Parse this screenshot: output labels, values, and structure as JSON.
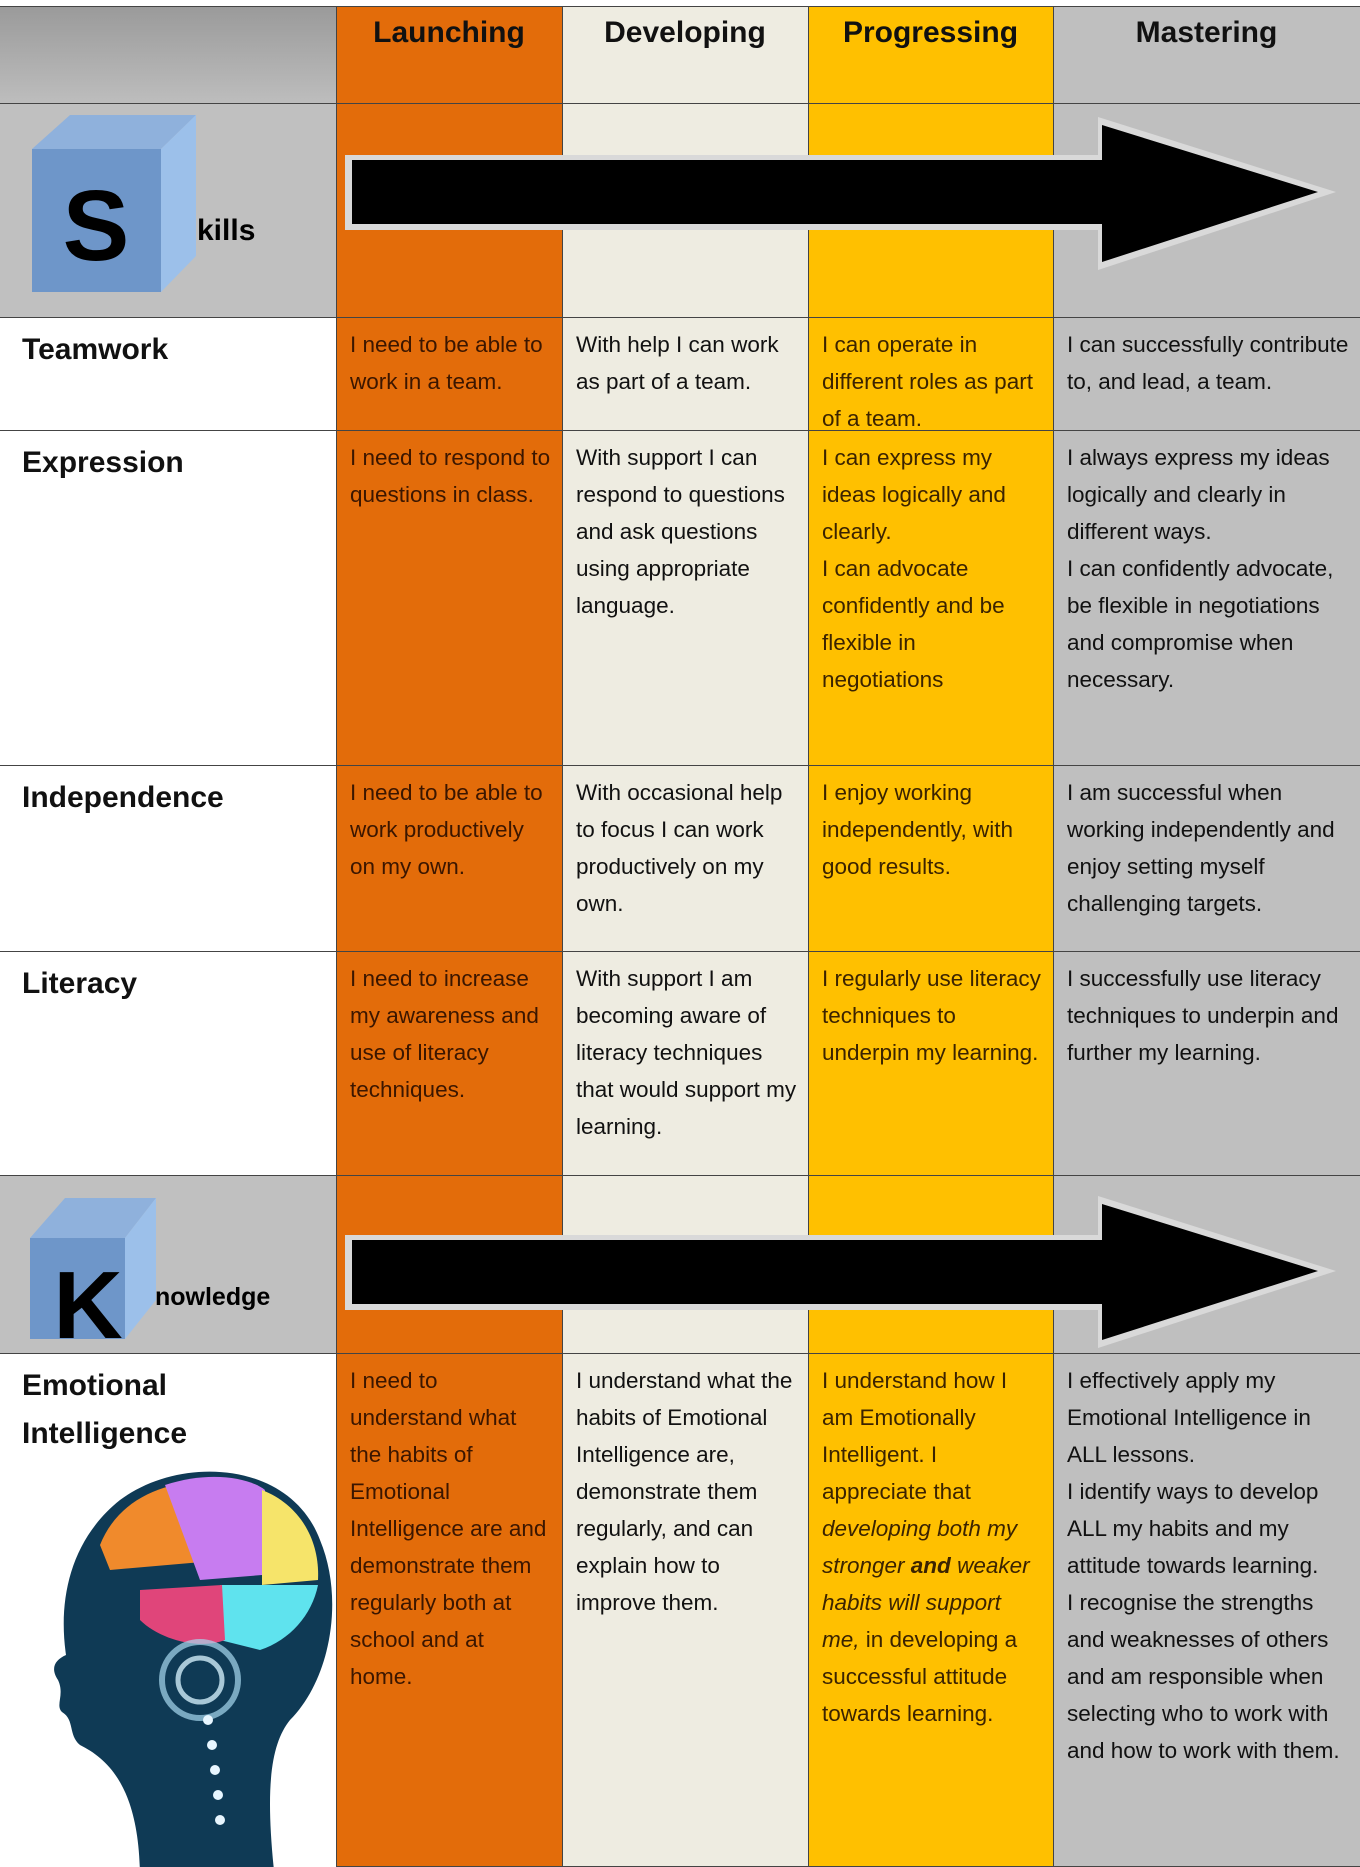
{
  "header": {
    "columns": [
      "Launching",
      "Developing",
      "Progressing",
      "Mastering"
    ]
  },
  "banners": [
    {
      "letter": "S",
      "rest": "kills"
    },
    {
      "letter": "K",
      "rest": "nowledge"
    }
  ],
  "rows": [
    {
      "label": "Teamwork",
      "cells": [
        [
          "I need to be able to work in a team."
        ],
        [
          "With help I can work as part of a team."
        ],
        [
          "I can operate in different roles as part of a team."
        ],
        [
          "I can successfully contribute to, and lead, a team."
        ]
      ]
    },
    {
      "label": "Expression",
      "cells": [
        [
          "I need to respond to questions in class."
        ],
        [
          "With support I can respond to questions and ask questions using appropriate language."
        ],
        [
          "I can express my ideas logically and clearly.",
          "I can advocate confidently and be flexible in negotiations"
        ],
        [
          "I always express my ideas logically and clearly in different ways.",
          "I can confidently advocate, be flexible in negotiations and compromise when necessary."
        ]
      ]
    },
    {
      "label": "Independence",
      "cells": [
        [
          "I need to be able to work productively on my own."
        ],
        [
          "With occasional help to focus I can work productively on my own."
        ],
        [
          "I enjoy working independently, with good results."
        ],
        [
          "I am successful when working independently and enjoy setting myself challenging targets."
        ]
      ]
    },
    {
      "label": "Literacy",
      "cells": [
        [
          "I need to increase my awareness and use of literacy techniques."
        ],
        [
          "With support I am becoming aware of literacy techniques that would support my learning."
        ],
        [
          "I regularly use literacy techniques to underpin my learning."
        ],
        [
          "I successfully use literacy techniques to underpin and further my learning."
        ]
      ]
    },
    {
      "label": "Emotional Intelligence",
      "cells": [
        [
          "I need to understand what the habits of Emotional Intelligence are and demonstrate them regularly both at school and at home."
        ],
        [
          "I understand what the habits of Emotional Intelligence are, demonstrate them regularly, and can explain how to improve them."
        ],
        [
          [
            {
              "text": "I understand how I am Emotionally Intelligent. I appreciate that ",
              "style": "normal"
            },
            {
              "text": "developing both my stronger ",
              "style": "italic"
            },
            {
              "text": "and",
              "style": "bold-italic"
            },
            {
              "text": " weaker habits will support me,",
              "style": "italic"
            },
            {
              "text": " in developing a successful attitude towards learning.",
              "style": "normal"
            }
          ]
        ],
        [
          "I effectively apply my Emotional Intelligence in ALL lessons.",
          "I identify ways to develop ALL my habits and my attitude towards learning.",
          "I recognise the strengths and weaknesses of others and am responsible when selecting who to work with and how to work with them."
        ]
      ]
    }
  ]
}
